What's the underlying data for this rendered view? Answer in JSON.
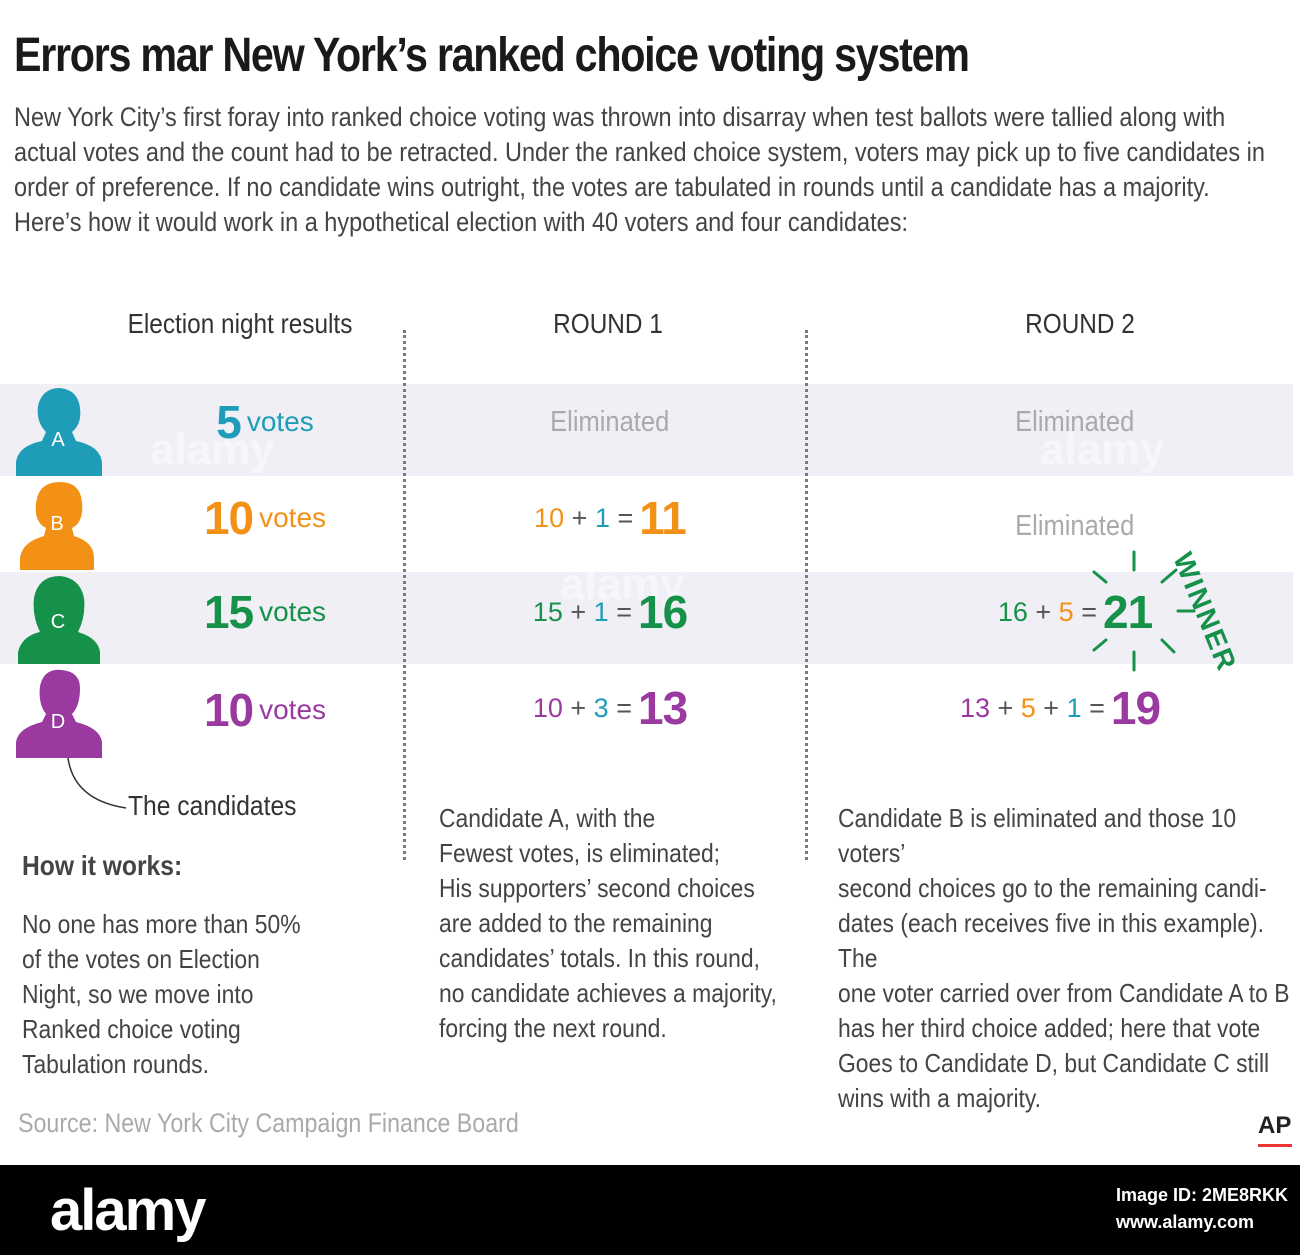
{
  "title": "Errors mar New York’s ranked choice voting system",
  "intro": "New York City’s first foray into ranked choice voting was thrown into disarray when test ballots were tallied along with actual votes and the count had to be retracted. Under the ranked choice system, voters may pick up to five candidates in order of preference. If no candidate wins outright, the votes are tabulated in rounds until a candidate has a majority. Here’s how it would work in a hypothetical election with 40 voters and four candidates:",
  "columns": {
    "election_night": "Election night results",
    "round1": "ROUND 1",
    "round2": "ROUND 2"
  },
  "vote_unit": "votes",
  "eliminated_label": "Eliminated",
  "colors": {
    "A": "#1e9cb8",
    "B": "#f39117",
    "C": "#15914a",
    "D": "#9a3aa0",
    "band": "#efeff5"
  },
  "candidates": [
    {
      "letter": "A",
      "night": "5",
      "r1": "Eliminated",
      "r2": "Eliminated"
    },
    {
      "letter": "B",
      "night": "10",
      "r1": {
        "base": "10",
        "plus": [
          "1"
        ],
        "total": "11"
      },
      "r2": "Eliminated"
    },
    {
      "letter": "C",
      "night": "15",
      "r1": {
        "base": "15",
        "plus": [
          "1"
        ],
        "total": "16"
      },
      "r2": {
        "base": "16",
        "plus": [
          "5"
        ],
        "total": "21"
      }
    },
    {
      "letter": "D",
      "night": "10",
      "r1": {
        "base": "10",
        "plus": [
          "3"
        ],
        "total": "13"
      },
      "r2": {
        "base": "13",
        "plus": [
          "5",
          "1"
        ],
        "total": "19"
      }
    }
  ],
  "winner_label": "WINNER",
  "candidates_label": "The candidates",
  "how_it_works": {
    "heading": "How it works:",
    "lines": [
      "No one has more than 50%",
      "of the votes on Election",
      "Night, so we move into",
      "Ranked choice voting",
      "Tabulation rounds."
    ]
  },
  "round1_text": [
    "Candidate A, with the",
    "Fewest votes, is eliminated;",
    "His supporters’ second choices",
    "are added to the remaining",
    "candidates’ totals. In this round,",
    "no candidate achieves a majority,",
    "forcing the next round."
  ],
  "round2_text": [
    "Candidate B is eliminated and those 10 voters’",
    "second choices go to the remaining candi-",
    "dates (each receives five in this example). The",
    "one voter carried over from Candidate A to B",
    "has her third choice added; here that vote",
    "Goes to Candidate D, but Candidate C still",
    "wins with a majority."
  ],
  "source": "Source: New York City Campaign Finance Board",
  "credit": "AP",
  "footer": {
    "brand": "alamy",
    "image_id": "Image ID: 2ME8RKK",
    "url": "www.alamy.com"
  },
  "watermark": "alamy"
}
